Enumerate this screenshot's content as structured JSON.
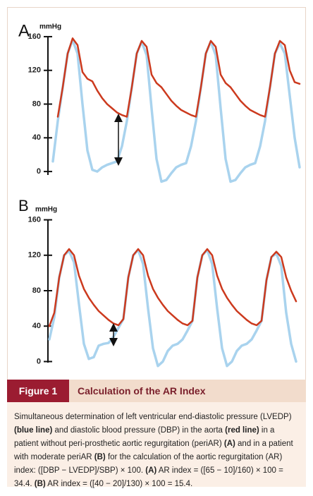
{
  "chart_data": [
    {
      "type": "line",
      "panel": "A",
      "y_unit": "mmHg",
      "ylim": [
        -20,
        170
      ],
      "yticks": [
        0,
        40,
        80,
        120,
        160
      ],
      "series": [
        {
          "color": "#a9d3ee",
          "values": [
            12,
            60,
            100,
            140,
            156,
            140,
            80,
            25,
            2,
            0,
            5,
            8,
            10,
            12,
            30,
            60,
            100,
            140,
            154,
            138,
            75,
            15,
            -12,
            -10,
            -2,
            5,
            8,
            10,
            30,
            60,
            100,
            140,
            154,
            138,
            75,
            15,
            -12,
            -10,
            -2,
            5,
            8,
            10,
            30,
            60,
            100,
            140,
            152,
            140,
            90,
            40,
            5
          ]
        },
        {
          "color": "#cc3a1e",
          "values": [
            null,
            65,
            100,
            140,
            158,
            150,
            118,
            110,
            107,
            96,
            87,
            80,
            75,
            70,
            67,
            65,
            100,
            140,
            155,
            148,
            115,
            105,
            100,
            92,
            84,
            78,
            73,
            70,
            67,
            65,
            100,
            140,
            155,
            148,
            115,
            105,
            100,
            92,
            84,
            78,
            73,
            70,
            67,
            65,
            100,
            140,
            155,
            150,
            120,
            106,
            104
          ]
        }
      ]
    },
    {
      "type": "line",
      "panel": "B",
      "y_unit": "mmHg",
      "ylim": [
        -10,
        170
      ],
      "yticks": [
        0,
        40,
        80,
        120,
        160
      ],
      "series": [
        {
          "color": "#a9d3ee",
          "values": [
            25,
            50,
            95,
            120,
            125,
            112,
            65,
            20,
            3,
            5,
            18,
            20,
            21,
            28,
            38,
            48,
            95,
            120,
            126,
            110,
            60,
            15,
            -5,
            0,
            12,
            18,
            20,
            25,
            35,
            46,
            95,
            120,
            126,
            110,
            60,
            15,
            -5,
            0,
            12,
            18,
            20,
            25,
            35,
            46,
            92,
            118,
            122,
            108,
            55,
            20,
            0
          ]
        },
        {
          "color": "#cc3a1e",
          "values": [
            40,
            55,
            95,
            120,
            127,
            120,
            97,
            82,
            72,
            64,
            57,
            52,
            47,
            43,
            41,
            48,
            95,
            120,
            127,
            120,
            97,
            82,
            72,
            64,
            57,
            52,
            47,
            43,
            41,
            46,
            95,
            120,
            127,
            120,
            97,
            82,
            72,
            64,
            57,
            52,
            47,
            43,
            41,
            46,
            92,
            118,
            124,
            118,
            95,
            80,
            68
          ]
        }
      ]
    }
  ],
  "figure": {
    "label": "Figure 1",
    "title": "Calculation of the AR Index",
    "caption": [
      {
        "text": "Simultaneous determination of left ventricular end-diastolic pressure (LVEDP) ",
        "bold": false
      },
      {
        "text": "(blue line)",
        "bold": true
      },
      {
        "text": " and diastolic blood pressure (DBP) in the aorta ",
        "bold": false
      },
      {
        "text": "(red line)",
        "bold": true
      },
      {
        "text": " in a patient without peri-prosthetic aortic regurgitation (periAR) ",
        "bold": false
      },
      {
        "text": "(A)",
        "bold": true
      },
      {
        "text": " and in a patient with moderate periAR ",
        "bold": false
      },
      {
        "text": "(B)",
        "bold": true
      },
      {
        "text": " for the calculation of the aortic regurgitation (AR) index: ([DBP − LVEDP]/SBP) × 100. ",
        "bold": false
      },
      {
        "text": "(A)",
        "bold": true
      },
      {
        "text": " AR index = ([65 − 10]/160) × 100 = 34.4. ",
        "bold": false
      },
      {
        "text": "(B)",
        "bold": true
      },
      {
        "text": " AR index = ([40 − 20]/130) × 100 = 15.4.",
        "bold": false
      }
    ]
  }
}
